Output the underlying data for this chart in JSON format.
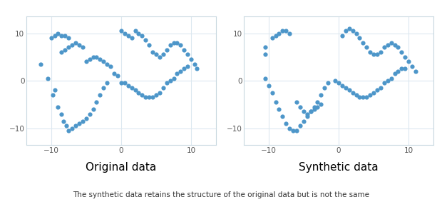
{
  "title_left": "Original data",
  "title_right": "Synthetic data",
  "subtitle": "The synthetic data retains the structure of the original data but is not the same",
  "dot_color": "#4d96c9",
  "dot_size": 20,
  "xlim": [
    -13.5,
    13.5
  ],
  "ylim": [
    -13.5,
    13.5
  ],
  "xticks": [
    -10,
    0,
    10
  ],
  "yticks": [
    -10,
    0,
    10
  ],
  "grid_color": "#dce8f0",
  "background_color": "#ffffff",
  "orig_x": [
    -11.5,
    -10.5,
    -9.5,
    -9.8,
    -9.0,
    -8.5,
    -8.2,
    -7.8,
    -7.5,
    -7.0,
    -6.5,
    -6.0,
    -5.5,
    -5.0,
    -4.5,
    -4.0,
    -3.5,
    -3.0,
    -2.5,
    -2.0,
    -10.0,
    -9.5,
    -9.0,
    -8.5,
    -8.0,
    -7.5,
    -5.0,
    -4.5,
    -4.0,
    -3.5,
    -3.0,
    -2.5,
    -2.0,
    -1.5,
    -8.5,
    -8.0,
    -7.5,
    -7.0,
    -6.5,
    -6.0,
    -5.5,
    -1.0,
    -0.5,
    0.0,
    0.5,
    1.0,
    1.5,
    2.0,
    2.5,
    3.0,
    3.5,
    4.0,
    4.5,
    5.0,
    5.5,
    6.0,
    6.5,
    7.0,
    7.5,
    8.0,
    8.5,
    9.0,
    9.5,
    10.0,
    10.5,
    10.8,
    9.5,
    9.0,
    8.5,
    8.0,
    7.5,
    7.0,
    6.5,
    6.0,
    5.5,
    5.0,
    4.5,
    4.0,
    3.5,
    3.0,
    2.5,
    2.0,
    1.5,
    1.0,
    0.5,
    0.0
  ],
  "orig_y": [
    3.5,
    0.5,
    -2.0,
    -3.0,
    -5.5,
    -7.0,
    -8.5,
    -9.5,
    -10.5,
    -10.0,
    -9.5,
    -9.0,
    -8.5,
    -8.0,
    -7.0,
    -6.0,
    -4.5,
    -3.0,
    -1.5,
    -0.5,
    9.0,
    9.5,
    10.0,
    9.5,
    9.5,
    9.0,
    4.0,
    4.5,
    5.0,
    5.0,
    4.5,
    4.0,
    3.5,
    3.0,
    6.0,
    6.5,
    7.0,
    7.5,
    8.0,
    7.5,
    7.0,
    1.5,
    1.0,
    10.5,
    10.0,
    9.5,
    9.0,
    10.5,
    10.0,
    9.5,
    8.5,
    7.5,
    6.0,
    5.5,
    5.0,
    5.5,
    6.5,
    7.5,
    8.0,
    8.0,
    7.5,
    6.5,
    5.5,
    4.5,
    3.5,
    2.5,
    3.0,
    2.5,
    2.0,
    1.5,
    0.5,
    0.0,
    -0.5,
    -1.5,
    -2.5,
    -3.0,
    -3.5,
    -3.5,
    -3.5,
    -3.0,
    -2.5,
    -2.0,
    -1.5,
    -1.0,
    -0.5,
    -0.5
  ],
  "synth_x": [
    -10.5,
    -10.0,
    -9.5,
    -9.0,
    -8.5,
    -8.0,
    -7.5,
    -7.0,
    -6.5,
    -6.0,
    -5.5,
    -5.0,
    -4.5,
    -4.0,
    -3.5,
    -3.0,
    -2.5,
    -2.0,
    -1.5,
    -9.5,
    -9.0,
    -8.5,
    -8.0,
    -7.5,
    -7.0,
    -10.5,
    -10.5,
    0.5,
    1.0,
    1.5,
    2.0,
    2.5,
    3.0,
    3.5,
    4.0,
    4.5,
    5.0,
    5.5,
    6.0,
    6.5,
    7.0,
    7.5,
    8.0,
    8.5,
    9.0,
    9.5,
    10.0,
    10.5,
    11.0,
    9.5,
    9.0,
    8.5,
    8.0,
    7.5,
    7.0,
    6.5,
    6.0,
    5.5,
    5.0,
    4.5,
    4.0,
    3.5,
    3.0,
    2.5,
    2.0,
    1.5,
    1.0,
    0.5,
    0.0,
    -0.5,
    -6.0,
    -5.5,
    -5.0,
    -4.5,
    -4.0,
    -3.5,
    -3.0,
    -2.5
  ],
  "synth_y": [
    0.5,
    -1.0,
    -2.5,
    -4.5,
    -6.0,
    -7.5,
    -9.0,
    -10.0,
    -10.5,
    -10.5,
    -9.5,
    -8.5,
    -7.5,
    -6.5,
    -5.5,
    -4.5,
    -3.0,
    -1.5,
    -0.5,
    9.0,
    9.5,
    10.0,
    10.5,
    10.5,
    10.0,
    7.0,
    5.5,
    9.5,
    10.5,
    11.0,
    10.5,
    10.0,
    9.0,
    8.0,
    7.0,
    6.0,
    5.5,
    5.5,
    6.0,
    7.0,
    7.5,
    8.0,
    7.5,
    7.0,
    6.0,
    5.0,
    4.0,
    3.0,
    2.0,
    2.5,
    2.5,
    2.0,
    1.5,
    0.5,
    0.0,
    -0.5,
    -1.5,
    -2.0,
    -2.5,
    -3.0,
    -3.5,
    -3.5,
    -3.5,
    -3.0,
    -2.5,
    -2.0,
    -1.5,
    -1.0,
    -0.5,
    0.0,
    -4.5,
    -5.5,
    -6.5,
    -7.0,
    -6.5,
    -6.0,
    -5.5,
    -5.0
  ]
}
